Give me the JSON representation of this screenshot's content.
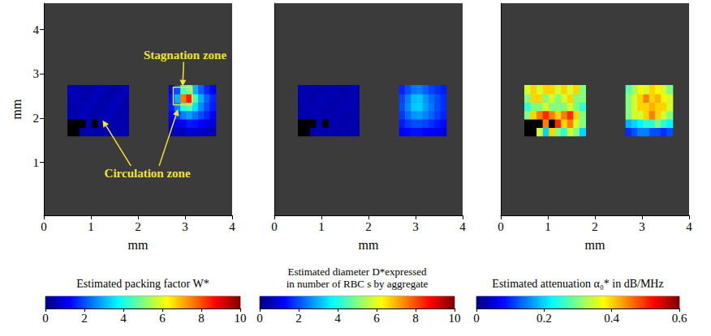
{
  "chart_data": [
    {
      "type": "heatmap",
      "x_label": "mm",
      "y_label": "mm",
      "xlim": [
        0,
        4
      ],
      "xticks": [
        0,
        1,
        2,
        3,
        4
      ],
      "ylim": [
        -0.2,
        4.6
      ],
      "yticks": [
        1,
        2,
        3,
        4
      ],
      "annotations": [
        "Stagnation zone",
        "Circulation zone"
      ],
      "regions": [
        {
          "x": [
            0.5,
            0.63,
            0.76,
            0.89,
            1.02,
            1.15,
            1.28,
            1.41,
            1.54,
            1.67,
            1.8
          ],
          "y": [
            1.6,
            1.79,
            1.98,
            2.17,
            2.36,
            2.55,
            2.75
          ],
          "values": [
            [
              null,
              null,
              0.4,
              0.5,
              0.4,
              0.5,
              0.4,
              0.5,
              0.4,
              0.5
            ],
            [
              null,
              null,
              null,
              0.5,
              null,
              0.4,
              0.5,
              0.4,
              0.5,
              0.4
            ],
            [
              0.5,
              0.4,
              0.6,
              0.5,
              0.4,
              0.5,
              0.6,
              0.5,
              0.4,
              0.5
            ],
            [
              0.4,
              0.5,
              0.5,
              0.6,
              0.5,
              0.4,
              0.5,
              0.6,
              0.5,
              0.4
            ],
            [
              0.5,
              0.6,
              0.4,
              0.5,
              0.6,
              0.5,
              0.4,
              0.5,
              0.6,
              0.5
            ],
            [
              0.6,
              0.5,
              0.5,
              0.4,
              0.5,
              0.6,
              0.5,
              0.4,
              0.5,
              0.6
            ]
          ]
        },
        {
          "x": [
            2.65,
            2.775,
            2.9,
            3.025,
            3.15,
            3.275,
            3.4,
            3.525,
            3.65
          ],
          "y": [
            1.6,
            1.79,
            1.98,
            2.17,
            2.36,
            2.55,
            2.75
          ],
          "values": [
            [
              0.5,
              0.6,
              0.6,
              0.8,
              0.8,
              0.7,
              0.6,
              0.5
            ],
            [
              0.8,
              1.0,
              1.2,
              1.5,
              1.4,
              1.2,
              1.0,
              0.8
            ],
            [
              1.2,
              1.8,
              2.5,
              2.8,
              2.4,
              2.0,
              1.6,
              1.2
            ],
            [
              1.5,
              2.5,
              4.0,
              4.5,
              3.5,
              2.6,
              2.0,
              1.5
            ],
            [
              1.4,
              3.0,
              7.5,
              8.5,
              4.5,
              3.0,
              2.2,
              1.6
            ],
            [
              1.0,
              2.0,
              4.5,
              5.0,
              3.0,
              2.2,
              1.6,
              1.2
            ]
          ]
        }
      ],
      "colorbar": {
        "title": "Estimated packing factor W*",
        "range": [
          0,
          10
        ],
        "ticks": [
          0,
          2,
          4,
          6,
          8,
          10
        ]
      }
    },
    {
      "type": "heatmap",
      "x_label": "mm",
      "tick_labels": "x",
      "xlim": [
        0,
        4
      ],
      "xticks": [
        0,
        1,
        2,
        3,
        4
      ],
      "ylim": [
        -0.2,
        4.6
      ],
      "regions": [
        {
          "x": [
            0.5,
            0.63,
            0.76,
            0.89,
            1.02,
            1.15,
            1.28,
            1.41,
            1.54,
            1.67,
            1.8
          ],
          "y": [
            1.6,
            1.79,
            1.98,
            2.17,
            2.36,
            2.55,
            2.75
          ],
          "values": [
            [
              null,
              null,
              0.4,
              0.5,
              0.4,
              0.5,
              0.4,
              0.5,
              0.4,
              0.5
            ],
            [
              null,
              null,
              null,
              0.5,
              null,
              0.4,
              0.5,
              0.4,
              0.5,
              0.4
            ],
            [
              0.5,
              0.4,
              0.5,
              0.5,
              0.4,
              0.5,
              0.5,
              0.5,
              0.4,
              0.5
            ],
            [
              0.4,
              0.5,
              0.5,
              0.5,
              0.5,
              0.4,
              0.5,
              0.5,
              0.5,
              0.4
            ],
            [
              0.5,
              0.5,
              0.4,
              0.5,
              0.5,
              0.5,
              0.4,
              0.5,
              0.5,
              0.5
            ],
            [
              0.5,
              0.5,
              0.5,
              0.4,
              0.5,
              0.5,
              0.5,
              0.4,
              0.5,
              0.5
            ]
          ]
        },
        {
          "x": [
            2.65,
            2.775,
            2.9,
            3.025,
            3.15,
            3.275,
            3.4,
            3.525,
            3.65
          ],
          "y": [
            1.6,
            1.79,
            1.98,
            2.17,
            2.36,
            2.55,
            2.75
          ],
          "values": [
            [
              1.2,
              1.3,
              1.4,
              1.4,
              1.3,
              1.2,
              1.1,
              1.0
            ],
            [
              1.5,
              1.8,
              2.0,
              2.0,
              1.9,
              1.7,
              1.5,
              1.3
            ],
            [
              1.8,
              2.3,
              2.7,
              2.8,
              2.5,
              2.2,
              1.9,
              1.6
            ],
            [
              2.0,
              2.6,
              3.2,
              3.3,
              2.8,
              2.4,
              2.0,
              1.7
            ],
            [
              1.9,
              2.5,
              3.1,
              3.2,
              2.7,
              2.3,
              2.0,
              1.7
            ],
            [
              1.6,
              2.0,
              2.4,
              2.5,
              2.2,
              1.9,
              1.7,
              1.5
            ]
          ]
        }
      ],
      "colorbar": {
        "title": "Estimated diameter D*expressed in number of RBC s by aggregate",
        "range": [
          0,
          10
        ],
        "ticks": [
          0,
          2,
          4,
          6,
          8,
          10
        ]
      }
    },
    {
      "type": "heatmap",
      "x_label": "mm",
      "tick_labels": "x",
      "xlim": [
        0,
        4
      ],
      "xticks": [
        0,
        1,
        2,
        3,
        4
      ],
      "ylim": [
        -0.2,
        4.6
      ],
      "regions": [
        {
          "x": [
            0.5,
            0.63,
            0.76,
            0.89,
            1.02,
            1.15,
            1.28,
            1.41,
            1.54,
            1.67,
            1.8
          ],
          "y": [
            1.6,
            1.79,
            1.98,
            2.17,
            2.36,
            2.55,
            2.75
          ],
          "values": [
            [
              null,
              null,
              0.35,
              0.2,
              0.4,
              0.3,
              0.25,
              0.35,
              0.3,
              0.2
            ],
            [
              null,
              null,
              null,
              0.45,
              null,
              0.5,
              0.4,
              0.45,
              0.35,
              0.3
            ],
            [
              0.3,
              0.4,
              0.45,
              0.5,
              0.45,
              0.4,
              0.45,
              0.5,
              0.4,
              0.3
            ],
            [
              0.25,
              0.3,
              0.3,
              0.35,
              0.3,
              0.3,
              0.3,
              0.35,
              0.3,
              0.25
            ],
            [
              0.3,
              0.4,
              0.4,
              0.3,
              0.35,
              0.3,
              0.35,
              0.4,
              0.3,
              0.3
            ],
            [
              0.35,
              0.4,
              0.35,
              0.4,
              0.4,
              0.35,
              0.4,
              0.35,
              0.4,
              0.3
            ]
          ]
        },
        {
          "x": [
            2.65,
            2.775,
            2.9,
            3.025,
            3.15,
            3.275,
            3.4,
            3.525,
            3.65
          ],
          "y": [
            1.6,
            1.79,
            1.98,
            2.17,
            2.36,
            2.55,
            2.75
          ],
          "values": [
            [
              0.1,
              0.12,
              0.15,
              0.15,
              0.12,
              0.12,
              0.1,
              0.12
            ],
            [
              0.18,
              0.2,
              0.22,
              0.25,
              0.25,
              0.3,
              0.25,
              0.22
            ],
            [
              0.3,
              0.35,
              0.35,
              0.4,
              0.45,
              0.4,
              0.35,
              0.3
            ],
            [
              0.3,
              0.35,
              0.4,
              0.4,
              0.42,
              0.4,
              0.4,
              0.35
            ],
            [
              0.3,
              0.35,
              0.4,
              0.45,
              0.4,
              0.42,
              0.38,
              0.35
            ],
            [
              0.28,
              0.32,
              0.38,
              0.35,
              0.4,
              0.38,
              0.35,
              0.3
            ]
          ]
        }
      ],
      "colorbar": {
        "title": "Estimated attenuation α₀* in dB/MHz",
        "range": [
          0,
          0.6
        ],
        "ticks": [
          0,
          0.2,
          0.4,
          0.6
        ]
      }
    }
  ]
}
